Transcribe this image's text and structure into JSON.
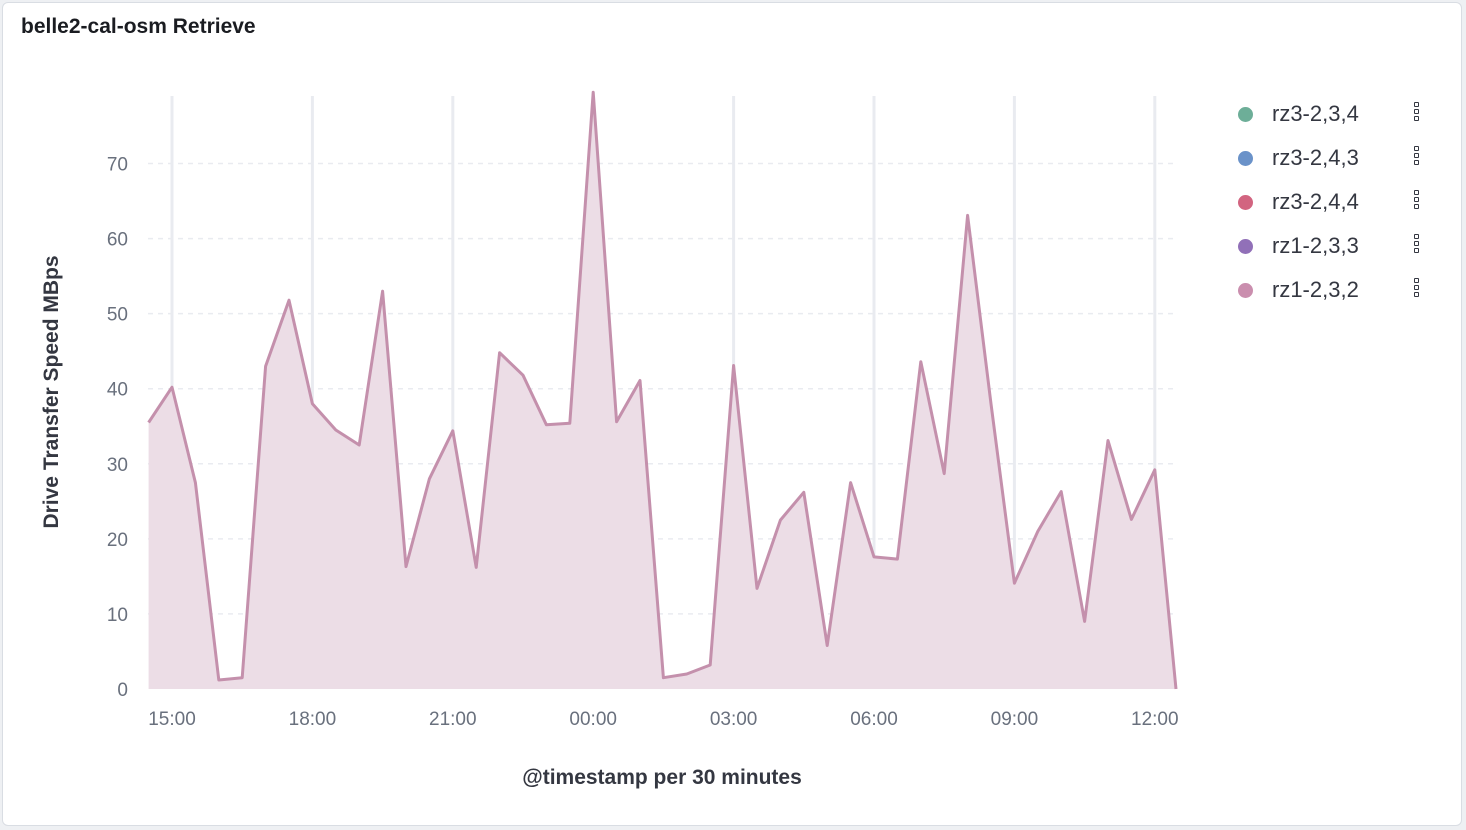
{
  "panel": {
    "title": "belle2-cal-osm Retrieve"
  },
  "colors": {
    "area_line": "#c490ac",
    "area_fill": "#ecdde6",
    "grid": "#e9ebf0",
    "axis_text": "#69707d",
    "axis_title": "#343741"
  },
  "legend": {
    "items": [
      {
        "label": "rz3-2,3,4",
        "color": "#6dae98"
      },
      {
        "label": "rz3-2,4,3",
        "color": "#6a92c9"
      },
      {
        "label": "rz3-2,4,4",
        "color": "#d26480"
      },
      {
        "label": "rz1-2,3,3",
        "color": "#9170b8"
      },
      {
        "label": "rz1-2,3,2",
        "color": "#ca8eae"
      }
    ],
    "menu_icon": "vertical-dots-icon"
  },
  "chart_data": {
    "type": "area",
    "xlabel": "@timestamp per 30 minutes",
    "ylabel": "Drive Transfer Speed MBps",
    "ylim": [
      0,
      79
    ],
    "yticks": [
      0,
      10,
      20,
      30,
      40,
      50,
      60,
      70
    ],
    "x_unit": "hours from 15:00",
    "xlim": [
      -0.4,
      21.6
    ],
    "xticks": [
      {
        "label": "15:00",
        "value": 0
      },
      {
        "label": "18:00",
        "value": 3
      },
      {
        "label": "21:00",
        "value": 6
      },
      {
        "label": "00:00",
        "value": 9
      },
      {
        "label": "03:00",
        "value": 12
      },
      {
        "label": "06:00",
        "value": 15
      },
      {
        "label": "09:00",
        "value": 18
      },
      {
        "label": "12:00",
        "value": 21
      }
    ],
    "grid": true,
    "legend_position": "right",
    "series": [
      {
        "name": "rz1-2,3,2",
        "x": [
          -0.5,
          0,
          0.5,
          1,
          1.5,
          2,
          2.5,
          3,
          3.5,
          4,
          4.5,
          5,
          5.5,
          6,
          6.5,
          7,
          7.5,
          8,
          8.5,
          9,
          9.5,
          10,
          10.5,
          11,
          11.5,
          12,
          12.5,
          13,
          13.5,
          14,
          14.5,
          15,
          15.5,
          16,
          16.5,
          17,
          17.5,
          18,
          18.5,
          19,
          19.5,
          20,
          20.5,
          21,
          21.5
        ],
        "values": [
          35.5,
          40.2,
          27.5,
          1.2,
          1.5,
          43,
          51.8,
          38,
          34.5,
          32.5,
          53,
          16.3,
          28,
          34.4,
          16.2,
          44.8,
          41.8,
          35.2,
          35.4,
          79.5,
          35.6,
          41.1,
          1.5,
          2,
          3.2,
          43.1,
          13.4,
          22.5,
          26.2,
          5.8,
          27.5,
          17.6,
          17.3,
          43.6,
          28.7,
          63.1,
          38,
          14.1,
          21,
          26.3,
          9,
          33.1,
          22.6,
          29.2,
          0
        ]
      }
    ]
  }
}
